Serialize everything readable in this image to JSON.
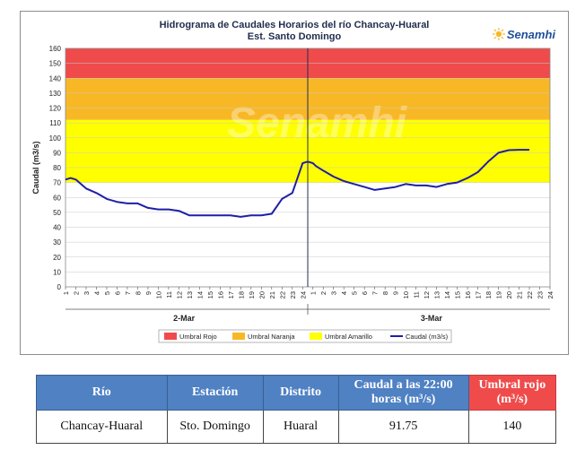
{
  "chart_data": {
    "type": "line",
    "title_line1": "Hidrograma de Caudales Horarios del río Chancay-Huaral",
    "title_line2": "Est. Santo Domingo",
    "ylabel": "Caudal  (m3/s)",
    "ylim": [
      0,
      160
    ],
    "yticks": [
      0,
      10,
      20,
      30,
      40,
      50,
      60,
      70,
      80,
      90,
      100,
      110,
      120,
      130,
      140,
      150,
      160
    ],
    "xtick_labels": [
      "1",
      "2",
      "3",
      "4",
      "5",
      "6",
      "7",
      "8",
      "9",
      "10",
      "11",
      "12",
      "13",
      "14",
      "15",
      "16",
      "17",
      "18",
      "19",
      "20",
      "21",
      "22",
      "23",
      "24",
      "1",
      "2",
      "3",
      "4",
      "5",
      "6",
      "7",
      "8",
      "9",
      "10",
      "11",
      "12",
      "13",
      "14",
      "15",
      "16",
      "17",
      "18",
      "19",
      "20",
      "21",
      "22",
      "23",
      "24"
    ],
    "day_labels": [
      "2-Mar",
      "3-Mar"
    ],
    "grid": true,
    "thresholds": [
      {
        "name": "Umbral Rojo",
        "from": 140,
        "to": 160,
        "color": "#f04b4b"
      },
      {
        "name": "Umbral Naranja",
        "from": 112,
        "to": 140,
        "color": "#f8b825"
      },
      {
        "name": "Umbral Amarillo",
        "from": 70,
        "to": 112,
        "color": "#ffff00"
      }
    ],
    "series": [
      {
        "name": "Caudal (m3/s)",
        "color": "#1f1fa8",
        "x": [
          0,
          0.5,
          1,
          1.5,
          2,
          3,
          4,
          5,
          6,
          7,
          8,
          9,
          10,
          11,
          12,
          13,
          14,
          15,
          16,
          17,
          18,
          19,
          20,
          21,
          22,
          23,
          23.5,
          24,
          24.3,
          25,
          26,
          27,
          28,
          29,
          30,
          31,
          32,
          33,
          34,
          35,
          36,
          37,
          38,
          39,
          40,
          41,
          42,
          43,
          44,
          44.5,
          45
        ],
        "y": [
          72,
          73,
          72,
          69,
          66,
          63,
          59,
          57,
          56,
          56,
          53,
          52,
          52,
          51,
          48,
          48,
          48,
          48,
          48,
          47,
          48,
          48,
          49,
          59,
          63,
          83,
          84,
          83,
          81,
          78,
          74,
          71,
          69,
          67,
          65,
          66,
          67,
          69,
          68,
          68,
          67,
          69,
          70,
          73,
          77,
          84,
          90,
          91.75,
          92,
          92,
          92
        ]
      }
    ],
    "legend_position": "bottom"
  },
  "watermark": "Senamhi",
  "logo_text": "Senamhi",
  "table": {
    "headers": {
      "rio": "Río",
      "estacion": "Estación",
      "distrito": "Distrito",
      "caudal": "Caudal a las 22:00 horas (m³/s)",
      "umbral": "Umbral rojo (m³/s)"
    },
    "row": {
      "rio": "Chancay-Huaral",
      "estacion": "Sto. Domingo",
      "distrito": "Huaral",
      "caudal": "91.75",
      "umbral": "140"
    }
  }
}
